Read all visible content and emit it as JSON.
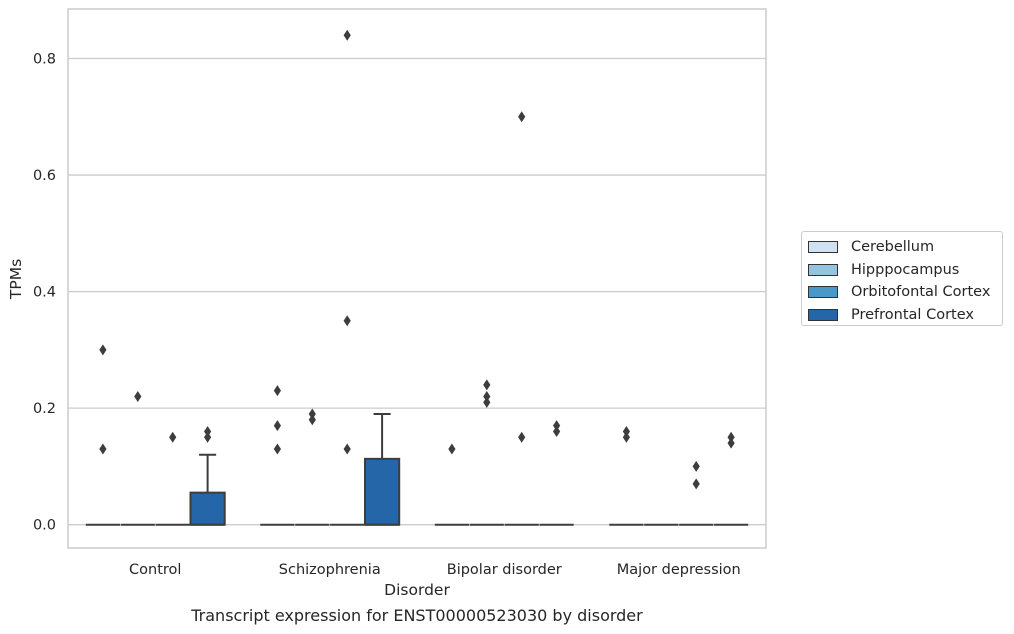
{
  "caption": "Transcript expression for ENST00000523030 by disorder",
  "chart_data": {
    "type": "box",
    "xlabel": "Disorder",
    "ylabel": "TPMs",
    "ylim": [
      -0.04,
      0.885
    ],
    "yticks": [
      0.0,
      0.2,
      0.4,
      0.6,
      0.8
    ],
    "ytick_labels": [
      "0.0",
      "0.2",
      "0.4",
      "0.6",
      "0.8"
    ],
    "grid": "horizontal",
    "legend_position": "right",
    "categories": [
      "Control",
      "Schizophrenia",
      "Bipolar disorder",
      "Major depression"
    ],
    "series": [
      {
        "name": "Cerebellum",
        "color": "#d0e1f2",
        "boxes": [
          {
            "q1": 0,
            "median": 0,
            "q3": 0,
            "whisker_low": 0,
            "whisker_high": 0,
            "outliers": [
              0.13,
              0.3
            ]
          },
          {
            "q1": 0,
            "median": 0,
            "q3": 0,
            "whisker_low": 0,
            "whisker_high": 0,
            "outliers": [
              0.13,
              0.17,
              0.23
            ]
          },
          {
            "q1": 0,
            "median": 0,
            "q3": 0,
            "whisker_low": 0,
            "whisker_high": 0,
            "outliers": [
              0.13
            ]
          },
          {
            "q1": 0,
            "median": 0,
            "q3": 0,
            "whisker_low": 0,
            "whisker_high": 0,
            "outliers": [
              0.15,
              0.16
            ]
          }
        ]
      },
      {
        "name": "Hipppocampus",
        "color": "#94c4df",
        "boxes": [
          {
            "q1": 0,
            "median": 0,
            "q3": 0,
            "whisker_low": 0,
            "whisker_high": 0,
            "outliers": [
              0.22
            ]
          },
          {
            "q1": 0,
            "median": 0,
            "q3": 0,
            "whisker_low": 0,
            "whisker_high": 0,
            "outliers": [
              0.18,
              0.19
            ]
          },
          {
            "q1": 0,
            "median": 0,
            "q3": 0,
            "whisker_low": 0,
            "whisker_high": 0,
            "outliers": [
              0.21,
              0.22,
              0.24
            ]
          },
          {
            "q1": 0,
            "median": 0,
            "q3": 0,
            "whisker_low": 0,
            "whisker_high": 0,
            "outliers": []
          }
        ]
      },
      {
        "name": "Orbitofontal Cortex",
        "color": "#4a98c9",
        "boxes": [
          {
            "q1": 0,
            "median": 0,
            "q3": 0,
            "whisker_low": 0,
            "whisker_high": 0,
            "outliers": [
              0.15
            ]
          },
          {
            "q1": 0,
            "median": 0,
            "q3": 0,
            "whisker_low": 0,
            "whisker_high": 0,
            "outliers": [
              0.13,
              0.35,
              0.84
            ]
          },
          {
            "q1": 0,
            "median": 0,
            "q3": 0,
            "whisker_low": 0,
            "whisker_high": 0,
            "outliers": [
              0.15,
              0.7
            ]
          },
          {
            "q1": 0,
            "median": 0,
            "q3": 0,
            "whisker_low": 0,
            "whisker_high": 0,
            "outliers": [
              0.07,
              0.1
            ]
          }
        ]
      },
      {
        "name": "Prefrontal Cortex",
        "color": "#2466a8",
        "boxes": [
          {
            "q1": 0,
            "median": 0,
            "q3": 0.055,
            "whisker_low": 0,
            "whisker_high": 0.12,
            "outliers": [
              0.15,
              0.16
            ]
          },
          {
            "q1": 0,
            "median": 0,
            "q3": 0.113,
            "whisker_low": 0,
            "whisker_high": 0.19,
            "outliers": []
          },
          {
            "q1": 0,
            "median": 0,
            "q3": 0,
            "whisker_low": 0,
            "whisker_high": 0,
            "outliers": [
              0.16,
              0.17
            ]
          },
          {
            "q1": 0,
            "median": 0,
            "q3": 0,
            "whisker_low": 0,
            "whisker_high": 0,
            "outliers": [
              0.14,
              0.15
            ]
          }
        ]
      }
    ]
  }
}
